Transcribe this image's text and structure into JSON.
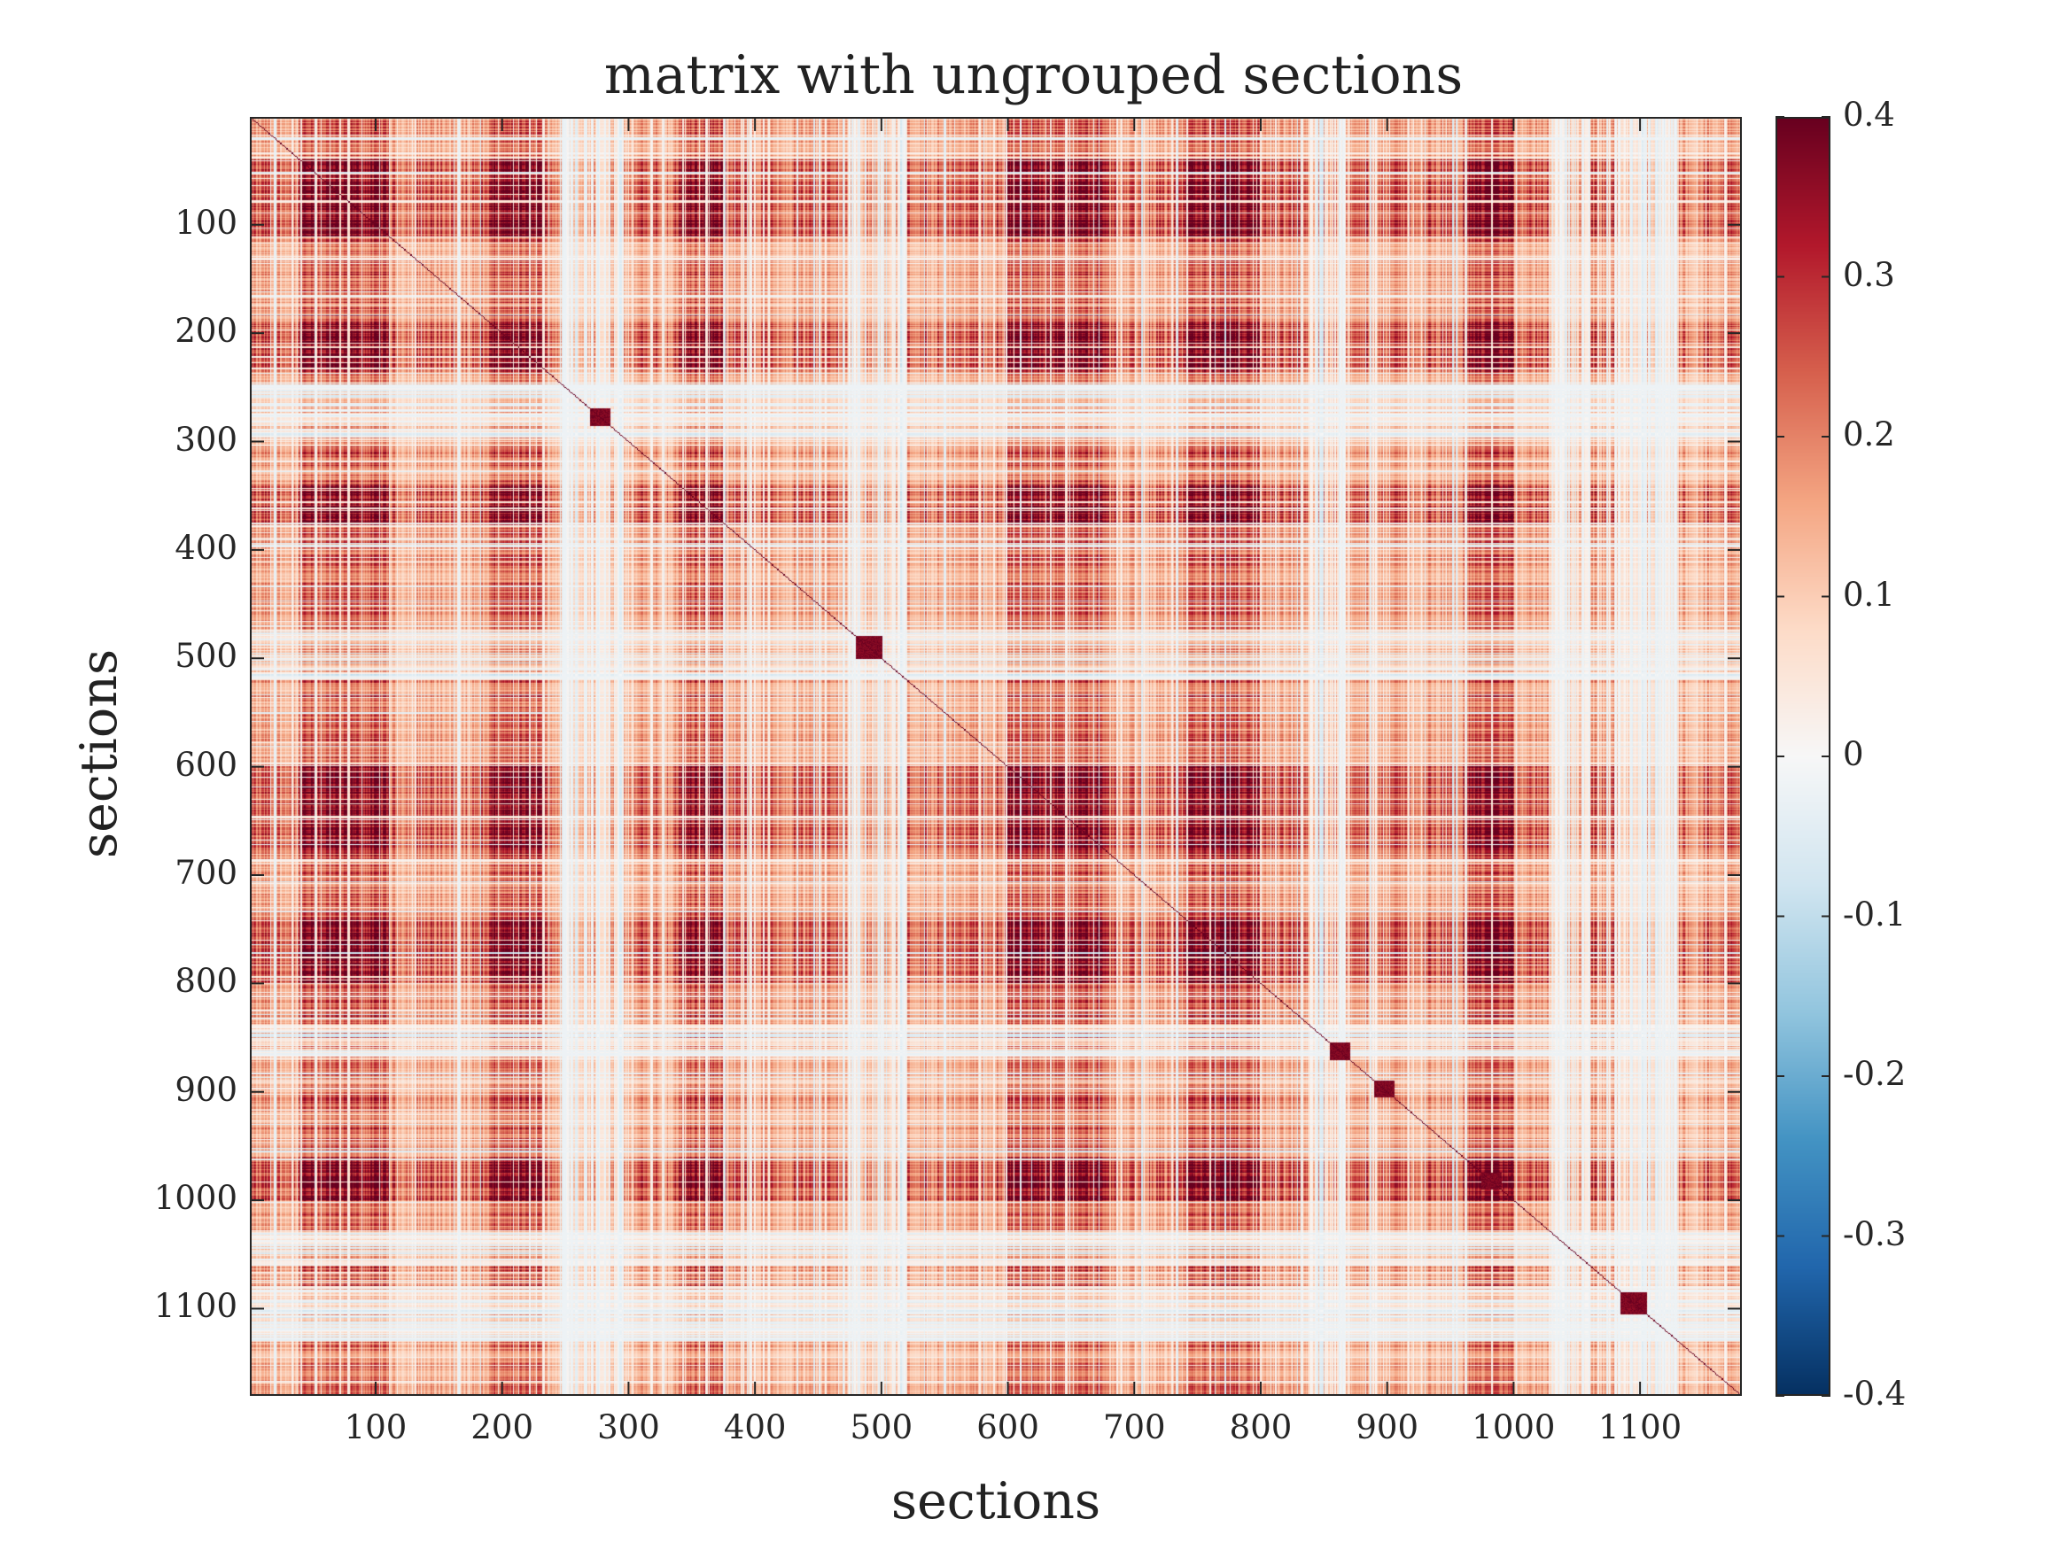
{
  "chart_data": {
    "type": "heatmap",
    "title": "matrix with ungrouped sections",
    "xlabel": "sections",
    "ylabel": "sections",
    "matrix_size": 1180,
    "xlim": [
      0.5,
      1180.5
    ],
    "ylim": [
      0.5,
      1180.5
    ],
    "y_direction": "reverse",
    "x_ticks": [
      100,
      200,
      300,
      400,
      500,
      600,
      700,
      800,
      900,
      1000,
      1100
    ],
    "x_tick_labels": [
      "100",
      "200",
      "300",
      "400",
      "500",
      "600",
      "700",
      "800",
      "900",
      "1000",
      "1100"
    ],
    "y_ticks": [
      100,
      200,
      300,
      400,
      500,
      600,
      700,
      800,
      900,
      1000,
      1100
    ],
    "y_tick_labels": [
      "100",
      "200",
      "300",
      "400",
      "500",
      "600",
      "700",
      "800",
      "900",
      "1000",
      "1100"
    ],
    "colorbar": {
      "colormap": "diverging blue-white-red",
      "clim": [
        -0.4,
        0.4
      ],
      "ticks": [
        0.4,
        0.3,
        0.2,
        0.1,
        0,
        -0.1,
        -0.2,
        -0.3,
        -0.4
      ],
      "tick_labels": [
        "0.4",
        "0.3",
        "0.2",
        "0.1",
        "0",
        "-0.1",
        "-0.2",
        "-0.3",
        "-0.4"
      ],
      "colors": [
        "#053061",
        "#2166ac",
        "#4393c3",
        "#92c5de",
        "#d1e5f0",
        "#f7f7f7",
        "#fddbc7",
        "#f4a582",
        "#d6604d",
        "#b2182b",
        "#67001f"
      ]
    },
    "diagonal_value": 0.4,
    "strongly_correlated_section_ranges": [
      [
        40,
        110
      ],
      [
        190,
        235
      ],
      [
        340,
        375
      ],
      [
        600,
        680
      ],
      [
        740,
        800
      ],
      [
        960,
        1000
      ],
      [
        975,
        995
      ]
    ],
    "weakly_correlated_section_ranges": [
      [
        245,
        300
      ],
      [
        470,
        520
      ],
      [
        840,
        870
      ],
      [
        1030,
        1060
      ],
      [
        1080,
        1130
      ]
    ],
    "diagonal_block_highlights": [
      [
        270,
        285
      ],
      [
        480,
        500
      ],
      [
        855,
        870
      ],
      [
        890,
        905
      ],
      [
        975,
        990
      ],
      [
        1085,
        1105
      ]
    ]
  }
}
